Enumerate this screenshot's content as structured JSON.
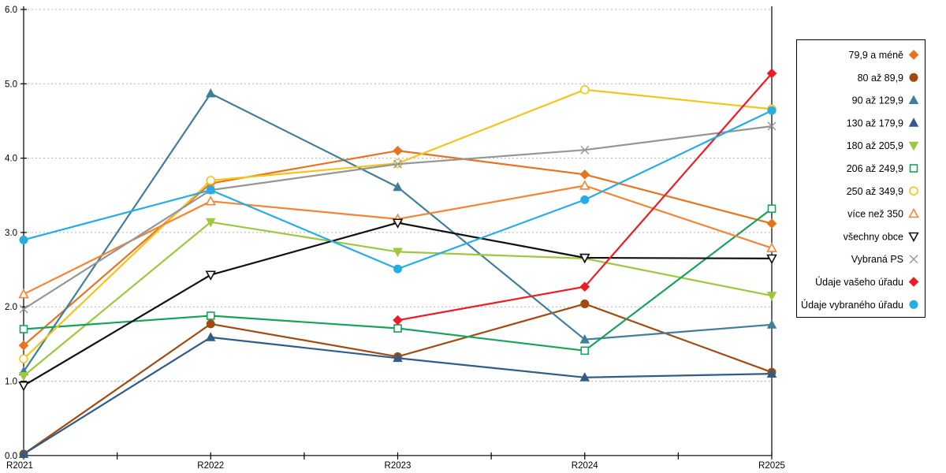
{
  "chart_data": {
    "type": "line",
    "title": "",
    "xlabel": "",
    "ylabel": "",
    "categories": [
      "R2021",
      "R2022",
      "R2023",
      "R2024",
      "R2025"
    ],
    "ylim": [
      0.0,
      6.0
    ],
    "ytick_step": 1.0,
    "ytick_labels": [
      "0.0",
      "1.0",
      "2.0",
      "3.0",
      "4.0",
      "5.0",
      "6.0"
    ],
    "grid": "horizontal-dotted",
    "grid_color": "#b4b4b4",
    "axis_color": "#000000",
    "legend_position": "right",
    "series": [
      {
        "name": "79,9 a méně",
        "color": "#e8731e",
        "marker": "diamond",
        "marker_fill": "filled",
        "values": [
          1.48,
          3.66,
          4.1,
          3.78,
          3.12
        ]
      },
      {
        "name": "80 až 89,9",
        "color": "#a04b10",
        "marker": "circle",
        "marker_fill": "filled",
        "values": [
          0.02,
          1.77,
          1.33,
          2.04,
          1.12
        ]
      },
      {
        "name": "90 až 129,9",
        "color": "#3e7f9b",
        "marker": "triangle-up",
        "marker_fill": "filled",
        "values": [
          1.13,
          4.87,
          3.61,
          1.56,
          1.76
        ]
      },
      {
        "name": "130 až 179,9",
        "color": "#315c88",
        "marker": "triangle-up",
        "marker_fill": "filled",
        "values": [
          0.02,
          1.59,
          1.31,
          1.05,
          1.1
        ]
      },
      {
        "name": "180 až 205,9",
        "color": "#9dc83e",
        "marker": "triangle-down",
        "marker_fill": "filled",
        "values": [
          1.07,
          3.14,
          2.74,
          2.65,
          2.15
        ]
      },
      {
        "name": "206 až 249,9",
        "color": "#16a35a",
        "marker": "square",
        "marker_fill": "open",
        "values": [
          1.7,
          1.88,
          1.71,
          1.41,
          3.32
        ]
      },
      {
        "name": "250 až 349,9",
        "color": "#f4c41b",
        "marker": "circle",
        "marker_fill": "open",
        "values": [
          1.3,
          3.7,
          3.93,
          4.92,
          4.66
        ]
      },
      {
        "name": "více než 350",
        "color": "#f58435",
        "marker": "triangle-up",
        "marker_fill": "open",
        "values": [
          2.17,
          3.42,
          3.18,
          3.63,
          2.79
        ]
      },
      {
        "name": "všechny obce",
        "color": "#111111",
        "marker": "triangle-down",
        "marker_fill": "open",
        "values": [
          0.94,
          2.43,
          3.13,
          2.66,
          2.65
        ]
      },
      {
        "name": "Vybraná PS",
        "color": "#969696",
        "marker": "x",
        "marker_fill": "open",
        "values": [
          1.97,
          3.57,
          3.92,
          4.11,
          4.43
        ]
      },
      {
        "name": "Údaje vašeho úřadu",
        "color": "#ee1b24",
        "marker": "diamond",
        "marker_fill": "filled",
        "values": [
          null,
          null,
          1.82,
          2.27,
          5.14
        ]
      },
      {
        "name": "Údaje vybraného úřadu",
        "color": "#26ade4",
        "marker": "circle",
        "marker_fill": "filled",
        "values": [
          2.9,
          3.57,
          2.51,
          3.44,
          4.64
        ]
      }
    ]
  }
}
